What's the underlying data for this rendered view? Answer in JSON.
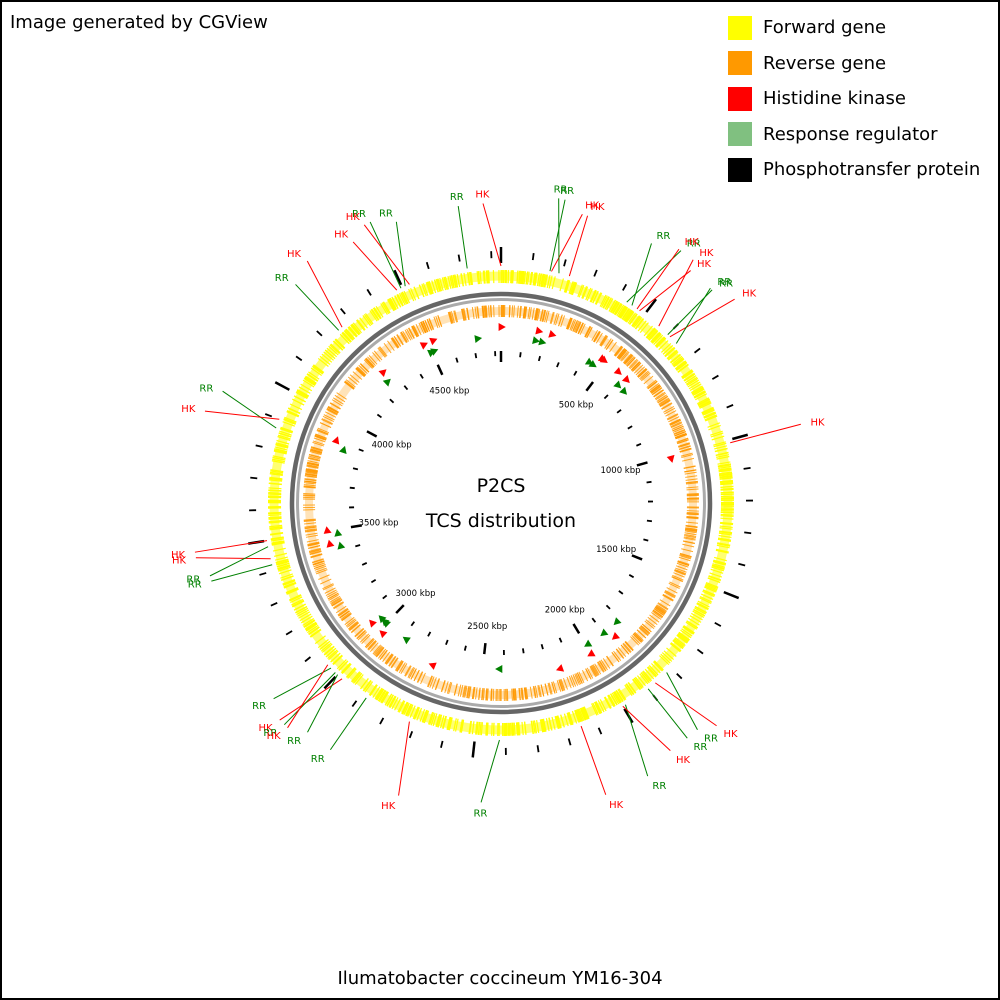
{
  "credit": "Image generated by CGView",
  "legend": [
    {
      "label": "Forward gene",
      "color": "#ffff00"
    },
    {
      "label": "Reverse gene",
      "color": "#ff9900"
    },
    {
      "label": "Histidine kinase",
      "color": "#ff0000"
    },
    {
      "label": "Response regulator",
      "color": "#80c080"
    },
    {
      "label": "Phosphotransfer protein",
      "color": "#000000"
    }
  ],
  "map": {
    "title": "P2CS",
    "subtitle": "TCS distribution",
    "organism": "Ilumatobacter coccineum YM16-304",
    "genome_length_kbp": 4830,
    "tick_label_suffix": " kbp",
    "ticks_labeled_kbp": [
      500,
      1000,
      1500,
      2000,
      2500,
      3000,
      3500,
      4000,
      4500
    ],
    "label_colors": {
      "HK": "#ff0000",
      "RR": "#008000",
      "HP": "#000000"
    },
    "features": [
      {
        "type": "HK",
        "pos_kbp": 0
      },
      {
        "type": "RR",
        "pos_kbp": 160
      },
      {
        "type": "HK",
        "pos_kbp": 165
      },
      {
        "type": "RR",
        "pos_kbp": 190
      },
      {
        "type": "HK",
        "pos_kbp": 225
      },
      {
        "type": "RR",
        "pos_kbp": 430
      },
      {
        "type": "RR",
        "pos_kbp": 450
      },
      {
        "type": "HK",
        "pos_kbp": 470
      },
      {
        "type": "HK",
        "pos_kbp": 480
      },
      {
        "type": "HK",
        "pos_kbp": 560
      },
      {
        "type": "RR",
        "pos_kbp": 600
      },
      {
        "type": "HK",
        "pos_kbp": 610
      },
      {
        "type": "RR",
        "pos_kbp": 640
      },
      {
        "type": "HK",
        "pos_kbp": 1010
      },
      {
        "type": "RR",
        "pos_kbp": 1820
      },
      {
        "type": "HK",
        "pos_kbp": 1870
      },
      {
        "type": "RR",
        "pos_kbp": 1900
      },
      {
        "type": "RR",
        "pos_kbp": 1990
      },
      {
        "type": "HK",
        "pos_kbp": 2000
      },
      {
        "type": "HK",
        "pos_kbp": 2150
      },
      {
        "type": "RR",
        "pos_kbp": 2420
      },
      {
        "type": "HK",
        "pos_kbp": 2720
      },
      {
        "type": "RR",
        "pos_kbp": 2880
      },
      {
        "type": "HK",
        "pos_kbp": 2980
      },
      {
        "type": "RR",
        "pos_kbp": 3000
      },
      {
        "type": "RR",
        "pos_kbp": 3010
      },
      {
        "type": "RR",
        "pos_kbp": 3030
      },
      {
        "type": "HK",
        "pos_kbp": 3045
      },
      {
        "type": "RR",
        "pos_kbp": 3420
      },
      {
        "type": "HK",
        "pos_kbp": 3440
      },
      {
        "type": "RR",
        "pos_kbp": 3480
      },
      {
        "type": "HK",
        "pos_kbp": 3500
      },
      {
        "type": "RR",
        "pos_kbp": 3870
      },
      {
        "type": "HK",
        "pos_kbp": 3900
      },
      {
        "type": "RR",
        "pos_kbp": 4250
      },
      {
        "type": "HK",
        "pos_kbp": 4265
      },
      {
        "type": "HK",
        "pos_kbp": 4480
      },
      {
        "type": "RR",
        "pos_kbp": 4495
      },
      {
        "type": "RR",
        "pos_kbp": 4510
      },
      {
        "type": "HK",
        "pos_kbp": 4525
      },
      {
        "type": "RR",
        "pos_kbp": 4720
      }
    ]
  }
}
